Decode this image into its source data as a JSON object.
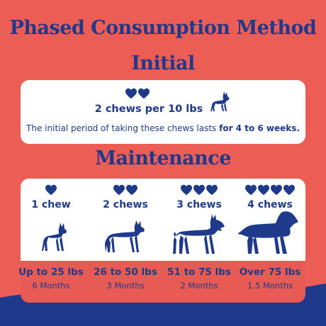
{
  "title": "Phased Consumption Method",
  "initial": {
    "heading": "Initial",
    "hearts_count": 2,
    "chews_label": "2 chews per 10 lbs",
    "desc_prefix": "The initial period of taking these chews lasts ",
    "desc_bold": "for 4 to 6 weeks.",
    "dog_icon": "boston-terrier-icon"
  },
  "maintenance": {
    "heading": "Maintenance",
    "columns": [
      {
        "hearts": 1,
        "label": "1 chew",
        "weight": "Up to 25 lbs",
        "months": "6 Months",
        "dog_icon": "small-terrier-icon"
      },
      {
        "hearts": 2,
        "label": "2 chews",
        "weight": "26 to 50 lbs",
        "months": "3 Months",
        "dog_icon": "pit-bull-icon"
      },
      {
        "hearts": 3,
        "label": "3 chews",
        "weight": "51 to 75 lbs",
        "months": "2 Months",
        "dog_icon": "schnauzer-icon"
      },
      {
        "hearts": 4,
        "label": "4 chews",
        "weight": "Over 75 lbs",
        "months": "1.5 Months",
        "dog_icon": "spaniel-icon"
      }
    ]
  },
  "colors": {
    "background": "#ec5d56",
    "navy": "#1f3a8a",
    "card": "#ffffff",
    "wave": "#1f3a8a"
  }
}
